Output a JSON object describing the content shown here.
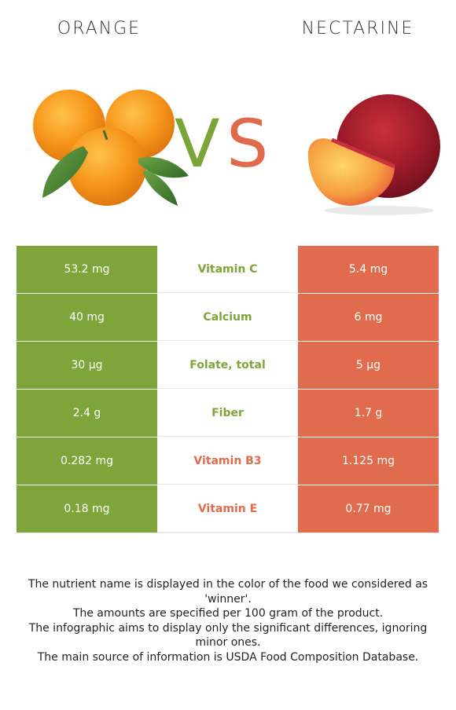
{
  "header": {
    "left_food": "ORANGE",
    "right_food": "NECTARINE",
    "vs_v": "V",
    "vs_s": "S"
  },
  "colors": {
    "left": "#7ea53a",
    "right": "#e06c4d"
  },
  "rows": [
    {
      "left_value": "53.2 mg",
      "nutrient": "Vitamin C",
      "right_value": "5.4 mg",
      "winner": "left"
    },
    {
      "left_value": "40 mg",
      "nutrient": "Calcium",
      "right_value": "6 mg",
      "winner": "left"
    },
    {
      "left_value": "30 µg",
      "nutrient": "Folate, total",
      "right_value": "5 µg",
      "winner": "left"
    },
    {
      "left_value": "2.4 g",
      "nutrient": "Fiber",
      "right_value": "1.7 g",
      "winner": "left"
    },
    {
      "left_value": "0.282 mg",
      "nutrient": "Vitamin B3",
      "right_value": "1.125 mg",
      "winner": "right"
    },
    {
      "left_value": "0.18 mg",
      "nutrient": "Vitamin E",
      "right_value": "0.77 mg",
      "winner": "right"
    }
  ],
  "footnotes": [
    "The nutrient name is displayed in the color of the food we considered as 'winner'.",
    "The amounts are specified per 100 gram of the product.",
    "The infographic aims to display only the significant differences, ignoring minor ones.",
    "The main source of information is USDA Food Composition Database."
  ]
}
